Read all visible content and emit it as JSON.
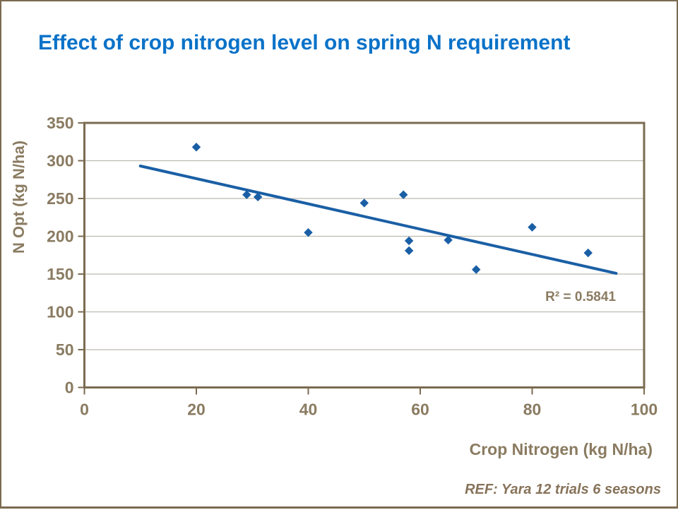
{
  "page": {
    "title": "Effect of crop nitrogen level on spring N requirement",
    "footer_ref": "REF: Yara 12 trials 6 seasons"
  },
  "colors": {
    "title_blue": "#0a72c8",
    "series_blue": "#1a5fa5",
    "axis_brown": "#7b6b50",
    "label_brown": "#8a7b61",
    "footer_brown": "#87735a",
    "gridline_grey": "#bdb9af",
    "background": "#ffffff"
  },
  "chart_data": {
    "type": "scatter",
    "title": "",
    "xlabel": "Crop Nitrogen (kg N/ha)",
    "ylabel": "N Opt (kg N/ha)",
    "xlim": [
      0,
      100
    ],
    "ylim": [
      0,
      350
    ],
    "x_ticks": [
      0,
      20,
      40,
      60,
      80,
      100
    ],
    "y_ticks": [
      0,
      50,
      100,
      150,
      200,
      250,
      300,
      350
    ],
    "grid": "horizontal",
    "legend": "none",
    "marker": "diamond",
    "points": [
      [
        20,
        318
      ],
      [
        29,
        255
      ],
      [
        31,
        252
      ],
      [
        40,
        205
      ],
      [
        50,
        244
      ],
      [
        57,
        255
      ],
      [
        58,
        194
      ],
      [
        58,
        181
      ],
      [
        65,
        195
      ],
      [
        70,
        156
      ],
      [
        80,
        212
      ],
      [
        90,
        178
      ]
    ],
    "trendline": {
      "x1": 10,
      "y1": 293,
      "x2": 95,
      "y2": 151
    },
    "r_squared_label": "R² = 0.5841"
  }
}
